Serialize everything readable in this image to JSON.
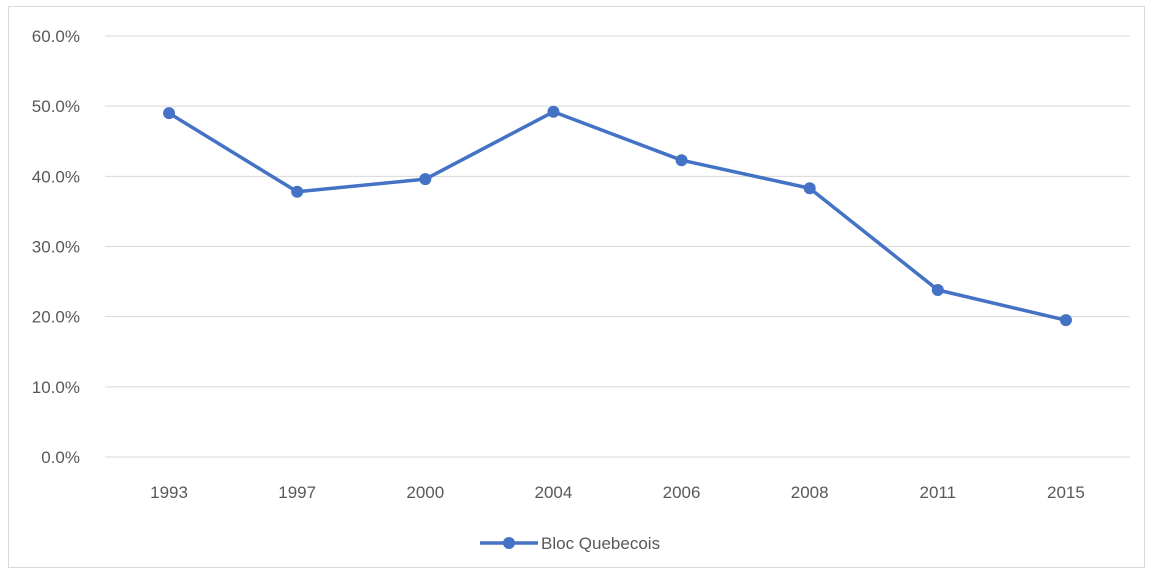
{
  "chart_data": {
    "type": "line",
    "title": "",
    "xlabel": "",
    "ylabel": "",
    "categories": [
      "1993",
      "1997",
      "2000",
      "2004",
      "2006",
      "2008",
      "2011",
      "2015"
    ],
    "series": [
      {
        "name": "Bloc Quebecois",
        "color": "#4472c4",
        "values": [
          49.0,
          37.8,
          39.6,
          49.2,
          42.3,
          38.3,
          23.8,
          19.5
        ],
        "marker": "circle"
      }
    ],
    "ylim": [
      0,
      60
    ],
    "yticks": [
      "0.0%",
      "10.0%",
      "20.0%",
      "30.0%",
      "40.0%",
      "50.0%",
      "60.0%"
    ],
    "grid": true,
    "legend_position": "bottom"
  }
}
